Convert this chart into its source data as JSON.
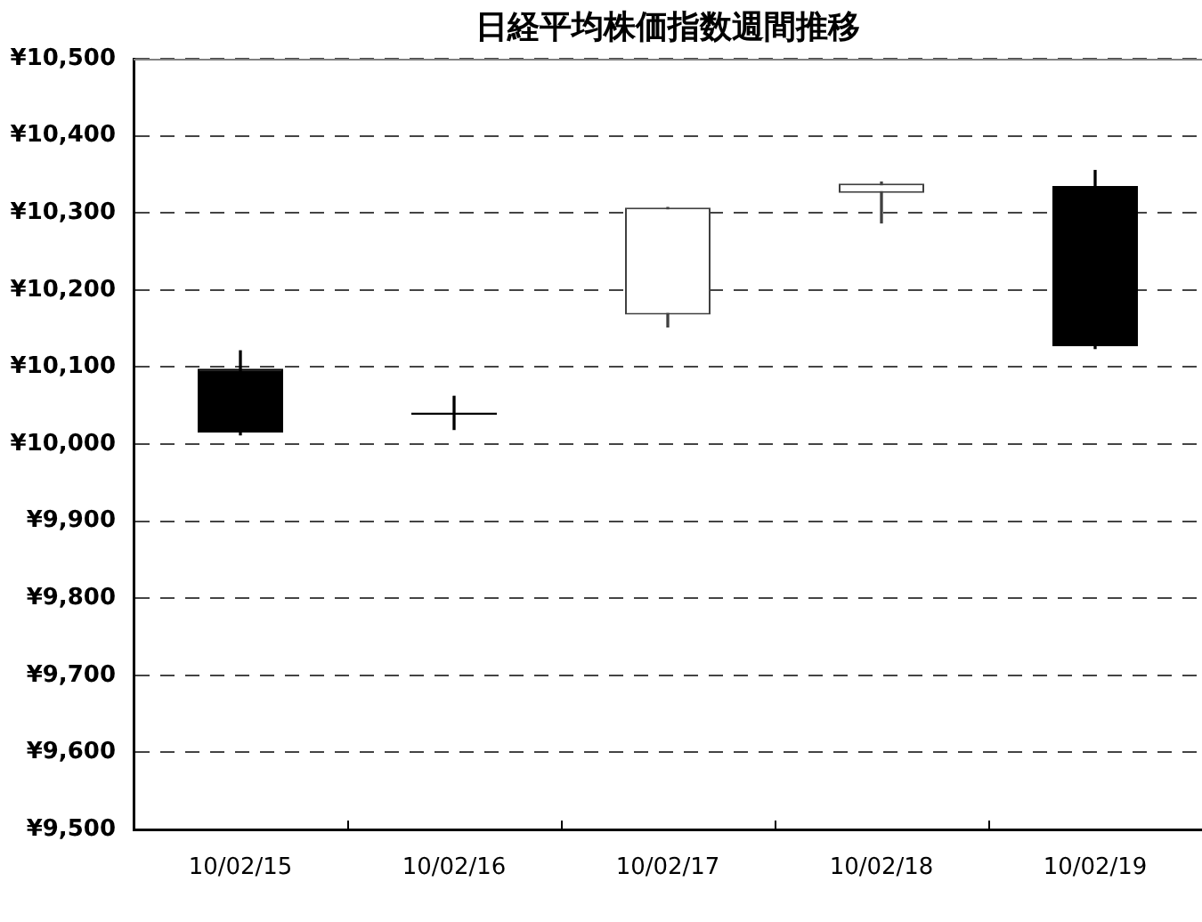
{
  "chart_data": {
    "type": "candlestick",
    "title": "日経平均株価指数週間推移",
    "categories": [
      "10/02/15",
      "10/02/16",
      "10/02/17",
      "10/02/18",
      "10/02/19"
    ],
    "ohlc": [
      [
        10098,
        10121,
        10012,
        10015
      ],
      [
        10041,
        10062,
        10019,
        10038
      ],
      [
        10168,
        10307,
        10152,
        10307
      ],
      [
        10326,
        10340,
        10287,
        10338
      ],
      [
        10335,
        10355,
        10124,
        10127
      ]
    ],
    "ylim": [
      9500,
      10500
    ],
    "yticks": [
      {
        "value": 9500,
        "label": "¥9,500"
      },
      {
        "value": 9600,
        "label": "¥9,600"
      },
      {
        "value": 9700,
        "label": "¥9,700"
      },
      {
        "value": 9800,
        "label": "¥9,800"
      },
      {
        "value": 9900,
        "label": "¥9,900"
      },
      {
        "value": 10000,
        "label": "¥10,000"
      },
      {
        "value": 10100,
        "label": "¥10,100"
      },
      {
        "value": 10200,
        "label": "¥10,200"
      },
      {
        "value": 10300,
        "label": "¥10,300"
      },
      {
        "value": 10400,
        "label": "¥10,400"
      },
      {
        "value": 10500,
        "label": "¥10,500"
      }
    ],
    "grid": "y"
  }
}
